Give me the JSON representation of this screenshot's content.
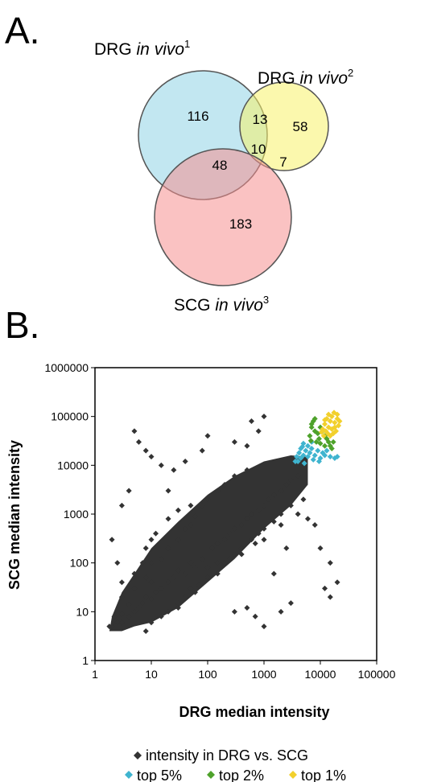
{
  "panel_a": {
    "letter": "A.",
    "sets": [
      {
        "name": "DRG",
        "qualifier": "in vivo",
        "sup": "1",
        "color": "#8fd3e6"
      },
      {
        "name": "DRG",
        "qualifier": "in vivo",
        "sup": "2",
        "color": "#f7f26a"
      },
      {
        "name": "SCG",
        "qualifier": "in vivo",
        "sup": "3",
        "color": "#f59090"
      }
    ],
    "regions": [
      {
        "sets": [
          1
        ],
        "count": "116"
      },
      {
        "sets": [
          1,
          2
        ],
        "count": "13"
      },
      {
        "sets": [
          2
        ],
        "count": "58"
      },
      {
        "sets": [
          1,
          2,
          3
        ],
        "count": "10"
      },
      {
        "sets": [
          1,
          3
        ],
        "count": "48"
      },
      {
        "sets": [
          2,
          3
        ],
        "count": "7"
      },
      {
        "sets": [
          3
        ],
        "count": "183"
      }
    ]
  },
  "panel_b": {
    "letter": "B."
  },
  "chart_data": {
    "type": "scatter",
    "xlabel": "DRG median intensity",
    "ylabel": "SCG median intensity",
    "xscale": "log",
    "yscale": "log",
    "xlim": [
      1,
      100000
    ],
    "ylim": [
      1,
      1000000
    ],
    "x_ticks": [
      "1",
      "10",
      "100",
      "1000",
      "10000",
      "100000"
    ],
    "y_ticks": [
      "1",
      "10",
      "100",
      "1000",
      "10000",
      "100000",
      "1000000"
    ],
    "grid": false,
    "legend_position": "bottom",
    "series": [
      {
        "name": "intensity in DRG vs. SCG",
        "color": "#333333",
        "marker": "diamond",
        "points": [
          [
            1.8,
            5
          ],
          [
            2,
            5
          ],
          [
            2.5,
            6
          ],
          [
            3,
            6
          ],
          [
            2.2,
            8
          ],
          [
            3,
            9
          ],
          [
            4,
            8
          ],
          [
            5,
            10
          ],
          [
            6,
            12
          ],
          [
            4,
            14
          ],
          [
            7,
            15
          ],
          [
            8,
            20
          ],
          [
            10,
            18
          ],
          [
            12,
            25
          ],
          [
            15,
            30
          ],
          [
            10,
            40
          ],
          [
            20,
            40
          ],
          [
            25,
            50
          ],
          [
            30,
            70
          ],
          [
            40,
            60
          ],
          [
            50,
            100
          ],
          [
            60,
            80
          ],
          [
            80,
            120
          ],
          [
            100,
            150
          ],
          [
            120,
            200
          ],
          [
            150,
            250
          ],
          [
            200,
            300
          ],
          [
            250,
            400
          ],
          [
            300,
            500
          ],
          [
            400,
            600
          ],
          [
            500,
            800
          ],
          [
            600,
            1000
          ],
          [
            800,
            1200
          ],
          [
            1000,
            1500
          ],
          [
            1200,
            2000
          ],
          [
            1500,
            2500
          ],
          [
            2000,
            3000
          ],
          [
            2500,
            4000
          ],
          [
            3000,
            5000
          ],
          [
            4000,
            6000
          ],
          [
            5,
            30
          ],
          [
            8,
            50
          ],
          [
            10,
            100
          ],
          [
            15,
            120
          ],
          [
            20,
            200
          ],
          [
            30,
            300
          ],
          [
            40,
            500
          ],
          [
            50,
            600
          ],
          [
            60,
            900
          ],
          [
            80,
            1500
          ],
          [
            100,
            2000
          ],
          [
            150,
            3000
          ],
          [
            200,
            4000
          ],
          [
            300,
            6000
          ],
          [
            500,
            8000
          ],
          [
            8,
            4
          ],
          [
            10,
            6
          ],
          [
            15,
            8
          ],
          [
            20,
            10
          ],
          [
            30,
            15
          ],
          [
            40,
            20
          ],
          [
            60,
            25
          ],
          [
            80,
            40
          ],
          [
            100,
            50
          ],
          [
            150,
            60
          ],
          [
            200,
            100
          ],
          [
            300,
            150
          ],
          [
            400,
            200
          ],
          [
            600,
            300
          ],
          [
            800,
            400
          ],
          [
            1000,
            500
          ],
          [
            1500,
            700
          ],
          [
            2000,
            1000
          ],
          [
            3000,
            1500
          ],
          [
            5000,
            2000
          ],
          [
            3,
            20
          ],
          [
            5,
            60
          ],
          [
            7,
            100
          ],
          [
            8,
            200
          ],
          [
            10,
            300
          ],
          [
            12,
            400
          ],
          [
            20,
            800
          ],
          [
            30,
            1200
          ],
          [
            50,
            1500
          ],
          [
            30,
            12
          ],
          [
            50,
            30
          ],
          [
            70,
            35
          ],
          [
            100,
            80
          ],
          [
            150,
            100
          ],
          [
            250,
            120
          ],
          [
            400,
            150
          ],
          [
            700,
            250
          ],
          [
            1000,
            300
          ],
          [
            2000,
            600
          ],
          [
            4000,
            1000
          ],
          [
            5,
            50000
          ],
          [
            6,
            30000
          ],
          [
            8,
            20000
          ],
          [
            10,
            15000
          ],
          [
            15,
            10000
          ],
          [
            25,
            8000
          ],
          [
            40,
            12000
          ],
          [
            80,
            20000
          ],
          [
            100,
            40000
          ],
          [
            300,
            30000
          ],
          [
            600,
            80000
          ],
          [
            1000,
            100000
          ],
          [
            800,
            50000
          ],
          [
            500,
            25000
          ],
          [
            6000,
            800
          ],
          [
            8000,
            600
          ],
          [
            10000,
            200
          ],
          [
            15000,
            100
          ],
          [
            12000,
            30
          ],
          [
            15000,
            20
          ],
          [
            20000,
            40
          ],
          [
            300,
            10
          ],
          [
            500,
            12
          ],
          [
            700,
            8
          ],
          [
            1000,
            5
          ],
          [
            2000,
            10
          ],
          [
            3000,
            15
          ],
          [
            20,
            3000
          ],
          [
            3,
            1500
          ],
          [
            4,
            3000
          ],
          [
            2,
            300
          ],
          [
            2.5,
            100
          ],
          [
            3,
            40
          ],
          [
            1500,
            60
          ],
          [
            2500,
            200
          ]
        ]
      },
      {
        "name": "top 5%",
        "color": "#3fb4cf",
        "marker": "diamond",
        "points": [
          [
            4000,
            12000
          ],
          [
            4500,
            14000
          ],
          [
            5000,
            16000
          ],
          [
            5500,
            20000
          ],
          [
            6000,
            15000
          ],
          [
            6500,
            18000
          ],
          [
            7000,
            22000
          ],
          [
            4200,
            18000
          ],
          [
            4800,
            24000
          ],
          [
            5200,
            11000
          ],
          [
            7500,
            13000
          ],
          [
            8000,
            16000
          ],
          [
            9000,
            20000
          ],
          [
            10000,
            14000
          ],
          [
            11000,
            18000
          ],
          [
            12000,
            16000
          ],
          [
            13000,
            20000
          ],
          [
            15000,
            15000
          ],
          [
            18000,
            14000
          ],
          [
            6000,
            25000
          ],
          [
            5000,
            28000
          ],
          [
            4500,
            22000
          ],
          [
            7000,
            30000
          ],
          [
            3800,
            15000
          ],
          [
            3600,
            12000
          ],
          [
            20000,
            15000
          ],
          [
            9500,
            12000
          ]
        ]
      },
      {
        "name": "top 2%",
        "color": "#4ea22b",
        "marker": "diamond",
        "points": [
          [
            6500,
            40000
          ],
          [
            7000,
            60000
          ],
          [
            7500,
            80000
          ],
          [
            8000,
            50000
          ],
          [
            9000,
            45000
          ],
          [
            10000,
            60000
          ],
          [
            11000,
            50000
          ],
          [
            12000,
            40000
          ],
          [
            9500,
            35000
          ],
          [
            8500,
            30000
          ],
          [
            13000,
            35000
          ],
          [
            14000,
            30000
          ],
          [
            15000,
            25000
          ],
          [
            16000,
            22000
          ],
          [
            8000,
            90000
          ],
          [
            7000,
            70000
          ],
          [
            10000,
            28000
          ],
          [
            12000,
            25000
          ],
          [
            17000,
            30000
          ],
          [
            6800,
            32000
          ]
        ]
      },
      {
        "name": "top 1%",
        "color": "#f2d02c",
        "marker": "diamond",
        "points": [
          [
            11000,
            55000
          ],
          [
            12000,
            70000
          ],
          [
            13000,
            90000
          ],
          [
            14000,
            60000
          ],
          [
            15000,
            80000
          ],
          [
            16000,
            100000
          ],
          [
            18000,
            75000
          ],
          [
            20000,
            90000
          ],
          [
            21000,
            65000
          ],
          [
            19000,
            50000
          ],
          [
            17000,
            45000
          ],
          [
            15000,
            40000
          ],
          [
            13500,
            45000
          ],
          [
            12500,
            50000
          ],
          [
            14000,
            110000
          ],
          [
            17500,
            120000
          ],
          [
            20000,
            110000
          ],
          [
            22000,
            80000
          ],
          [
            11500,
            40000
          ],
          [
            16000,
            55000
          ],
          [
            18000,
            60000
          ],
          [
            12000,
            85000
          ],
          [
            10500,
            48000
          ]
        ]
      }
    ]
  }
}
